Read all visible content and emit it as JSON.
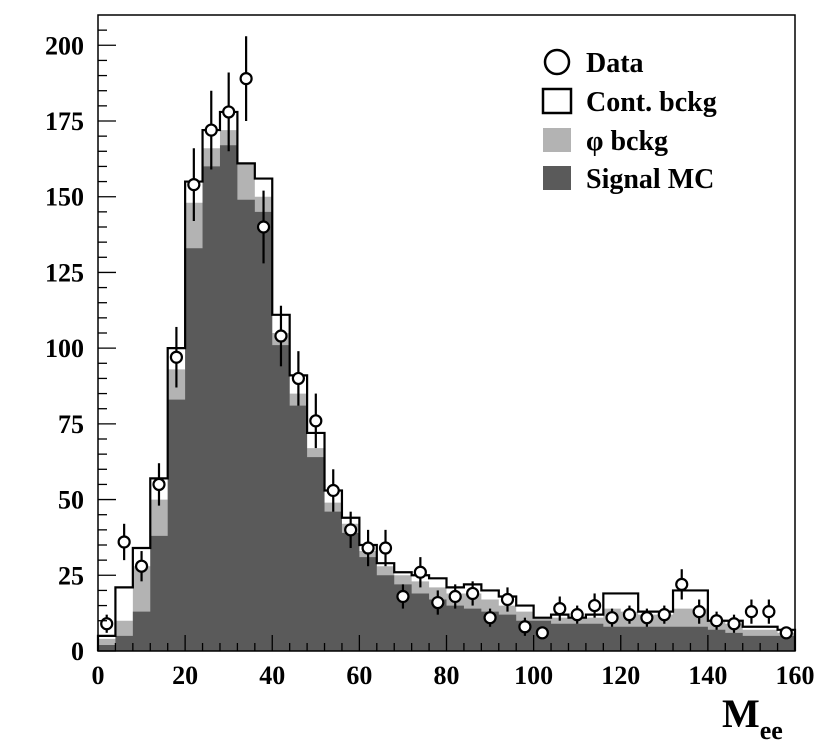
{
  "chart_data": {
    "type": "bar",
    "xlabel": "M",
    "xlabel_sub": "ee",
    "ylabel": "",
    "xlim": [
      0,
      160
    ],
    "ylim": [
      0,
      210
    ],
    "x_ticks": [
      0,
      20,
      40,
      60,
      80,
      100,
      120,
      140,
      160
    ],
    "y_ticks": [
      0,
      25,
      50,
      75,
      100,
      125,
      150,
      175,
      200
    ],
    "grid": false,
    "legend_position": "top-right",
    "bin_edges": [
      0,
      4,
      8,
      12,
      16,
      20,
      24,
      28,
      32,
      36,
      40,
      44,
      48,
      52,
      56,
      60,
      64,
      68,
      72,
      76,
      80,
      84,
      88,
      92,
      96,
      100,
      104,
      108,
      112,
      116,
      120,
      124,
      128,
      132,
      136,
      140,
      144,
      148,
      152,
      156,
      160
    ],
    "series": [
      {
        "name": "Cont. bckg",
        "style": "outline",
        "color": "#000000",
        "values": [
          5,
          21,
          34,
          57,
          100,
          155,
          172,
          178,
          161,
          156,
          111,
          91,
          72,
          53,
          44,
          35,
          29,
          26,
          25,
          24,
          21,
          22,
          20,
          18,
          15,
          11,
          12,
          11,
          12,
          19,
          19,
          13,
          13,
          20,
          20,
          10,
          10,
          8,
          8,
          7
        ]
      },
      {
        "name": "φ bckg",
        "style": "fill",
        "color": "#b3b3b3",
        "values": [
          4,
          10,
          28,
          50,
          93,
          148,
          166,
          172,
          161,
          150,
          105,
          85,
          67,
          49,
          42,
          33,
          28,
          25,
          23,
          21,
          19,
          19,
          17,
          15,
          13,
          11,
          11,
          11,
          11,
          14,
          13,
          12,
          12,
          14,
          14,
          10,
          9,
          7,
          7,
          6
        ]
      },
      {
        "name": "Signal MC",
        "style": "fill",
        "color": "#5a5a5a",
        "values": [
          2,
          5,
          13,
          38,
          83,
          133,
          160,
          167,
          149,
          145,
          101,
          81,
          64,
          46,
          39,
          31,
          25,
          22,
          19,
          17,
          15,
          14,
          13,
          12,
          10,
          10,
          9,
          9,
          9,
          8,
          8,
          8,
          8,
          8,
          8,
          7,
          6,
          5,
          5,
          5
        ]
      },
      {
        "name": "Data",
        "style": "points",
        "x": [
          2,
          6,
          10,
          14,
          18,
          22,
          26,
          30,
          34,
          38,
          42,
          46,
          50,
          54,
          58,
          62,
          66,
          70,
          74,
          78,
          82,
          86,
          90,
          94,
          98,
          102,
          106,
          110,
          114,
          118,
          122,
          126,
          130,
          134,
          138,
          142,
          146,
          150,
          154,
          158
        ],
        "y": [
          9,
          36,
          28,
          55,
          97,
          154,
          172,
          178,
          189,
          140,
          104,
          90,
          76,
          53,
          40,
          34,
          34,
          18,
          26,
          16,
          18,
          19,
          11,
          17,
          8,
          6,
          14,
          12,
          15,
          11,
          12,
          11,
          12,
          22,
          13,
          10,
          9,
          13,
          13,
          6
        ],
        "err": [
          3,
          6,
          5,
          7,
          10,
          12,
          13,
          13,
          14,
          12,
          10,
          9,
          9,
          7,
          6,
          6,
          6,
          4,
          5,
          4,
          4,
          4,
          3,
          4,
          3,
          2,
          4,
          3,
          4,
          3,
          3,
          3,
          3,
          5,
          4,
          3,
          3,
          4,
          4,
          2
        ]
      }
    ],
    "legend": [
      {
        "label": "Data",
        "symbol": "circle"
      },
      {
        "label": "Cont. bckg",
        "symbol": "open-box"
      },
      {
        "label": "φ bckg",
        "symbol": "light-box",
        "color": "#b3b3b3"
      },
      {
        "label": "Signal MC",
        "symbol": "dark-box",
        "color": "#5a5a5a"
      }
    ]
  }
}
